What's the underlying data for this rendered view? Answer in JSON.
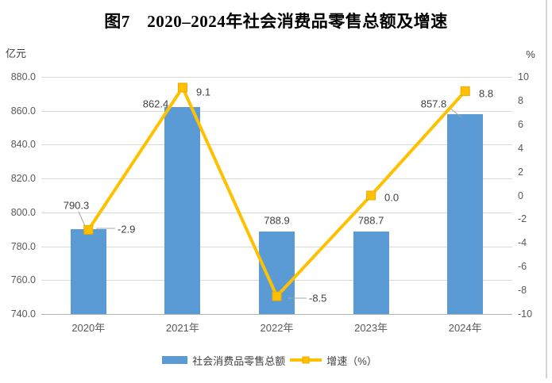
{
  "title": "图7　2020–2024年社会消费品零售总额及增速",
  "left_axis": {
    "unit": "亿元",
    "min": 740,
    "max": 880,
    "step": 20,
    "tick_labels": [
      "740.0",
      "760.0",
      "780.0",
      "800.0",
      "820.0",
      "840.0",
      "860.0",
      "880.0"
    ]
  },
  "right_axis": {
    "unit": "%",
    "min": -10,
    "max": 10,
    "step": 2,
    "tick_labels": [
      "-10",
      "-8",
      "-6",
      "-4",
      "-2",
      "0",
      "2",
      "4",
      "6",
      "8",
      "10"
    ]
  },
  "chart_data": {
    "type": "combo-bar-line",
    "title": "图7　2020–2024年社会消费品零售总额及增速",
    "categories": [
      "2020年",
      "2021年",
      "2022年",
      "2023年",
      "2024年"
    ],
    "series": [
      {
        "name": "社会消费品零售总额",
        "type": "bar",
        "axis": "left",
        "unit": "亿元",
        "color": "#5B9BD5",
        "values": [
          790.3,
          862.4,
          788.9,
          788.7,
          857.8
        ],
        "labels": [
          "790.3",
          "862.4",
          "788.9",
          "788.7",
          "857.8"
        ]
      },
      {
        "name": "增速（%）",
        "type": "line",
        "axis": "right",
        "unit": "%",
        "color": "#FFC000",
        "marker": "square",
        "values": [
          -2.9,
          9.1,
          -8.5,
          0.0,
          8.8
        ],
        "labels": [
          "-2.9",
          "9.1",
          "-8.5",
          "0.0",
          "8.8"
        ]
      }
    ],
    "ylim_left": [
      740,
      880
    ],
    "ylim_right": [
      -10,
      10
    ],
    "grid": "horizontal",
    "legend_position": "bottom"
  },
  "legend": {
    "items": [
      {
        "label": "社会消费品零售总额",
        "swatch": "bar",
        "color": "#5B9BD5"
      },
      {
        "label": "增速（%）",
        "swatch": "line-marker",
        "color": "#FFC000"
      }
    ]
  },
  "colors": {
    "bar": "#5B9BD5",
    "line": "#FFC000",
    "marker_edge": "#EFA800",
    "gridline": "#DADADA",
    "axis_line": "#B0B0B0",
    "tick_text": "#595959",
    "label_text": "#404040",
    "leader": "#A6A6A6",
    "page_border": "#CBD8CB"
  }
}
